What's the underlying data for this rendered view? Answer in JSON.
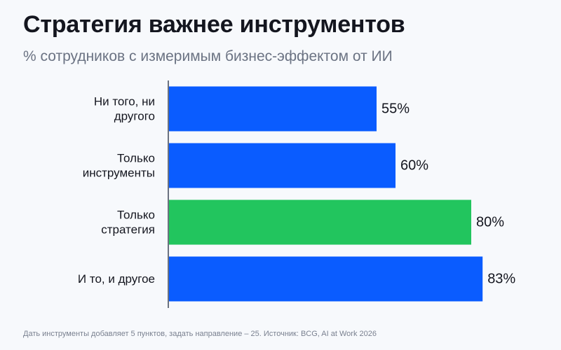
{
  "header": {
    "title": "Стратегия важнее инструментов",
    "subtitle": "% сотрудников с измеримым бизнес-эффектом от ИИ"
  },
  "footer": {
    "note": "Дать инструменты добавляет 5 пунктов, задать направление – 25. Источник: BCG, AI at Work 2026"
  },
  "chart_data": {
    "type": "bar",
    "orientation": "horizontal",
    "categories": [
      [
        "Ни того, ни",
        "другого"
      ],
      [
        "Только",
        "инструменты"
      ],
      [
        "Только",
        "стратегия"
      ],
      [
        "И то, и другое"
      ]
    ],
    "values": [
      55,
      60,
      80,
      83
    ],
    "data_labels": [
      "55%",
      "60%",
      "80%",
      "83%"
    ],
    "bar_colors": [
      "#0a5cff",
      "#0a5cff",
      "#22c55e",
      "#0a5cff"
    ],
    "xlim": [
      0,
      100
    ],
    "grid": false,
    "legend": "none"
  }
}
